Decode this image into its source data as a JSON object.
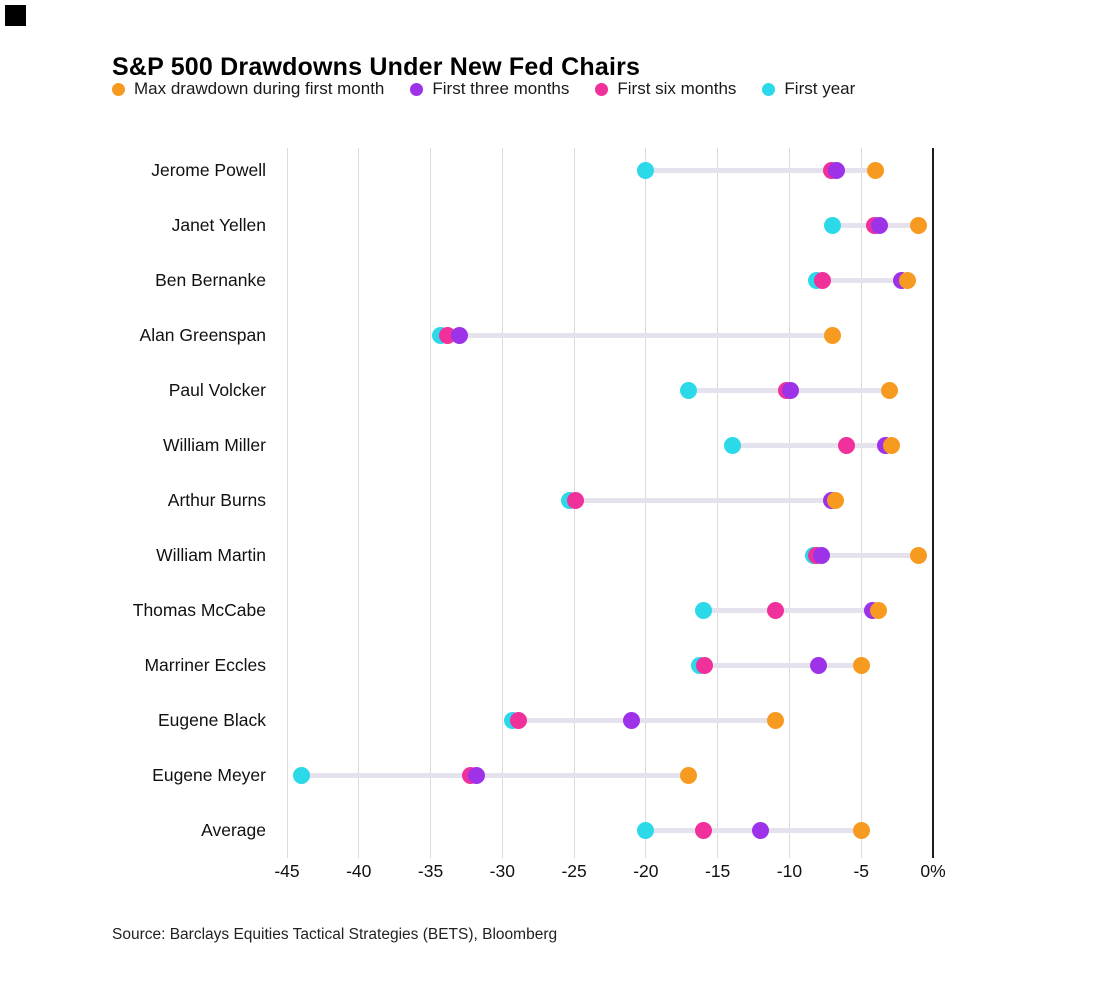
{
  "page": {
    "title": "S&P 500 Drawdowns Under New Fed Chairs",
    "source": "Source: Barclays Equities Tactical Strategies (BETS), Bloomberg"
  },
  "colors": {
    "first_month": "#F79A20",
    "three_months": "#9D32E8",
    "six_months": "#F0309B",
    "first_year": "#2BD9E8",
    "gridline": "#dbdbdb",
    "zero_line": "#1c1c1c",
    "connector": "#e5e2ee"
  },
  "chart_data": {
    "type": "scatter",
    "subtype": "dumbbell-dot-plot",
    "title": "S&P 500 Drawdowns Under New Fed Chairs",
    "unit": "%",
    "grid": "vertical",
    "legend_position": "top",
    "xlim": [
      -47.5,
      1.5
    ],
    "x_ticks": [
      -45,
      -40,
      -35,
      -30,
      -25,
      -20,
      -15,
      -10,
      -5,
      0
    ],
    "x_tick_labels": [
      "-45",
      "-40",
      "-35",
      "-30",
      "-25",
      "-20",
      "-15",
      "-10",
      "-5",
      "0%"
    ],
    "categories": [
      "Jerome Powell",
      "Janet Yellen",
      "Ben Bernanke",
      "Alan Greenspan",
      "Paul Volcker",
      "William Miller",
      "Arthur Burns",
      "William Martin",
      "Thomas McCabe",
      "Marriner Eccles",
      "Eugene Black",
      "Eugene Meyer",
      "Average"
    ],
    "series": [
      {
        "name": "Max drawdown during first month",
        "key": "first_month",
        "color": "#F79A20",
        "values": [
          -4,
          -1,
          -1.8,
          -7,
          -3,
          -2.9,
          -6.8,
          -1,
          -3.8,
          -5,
          -11,
          -17,
          -5
        ]
      },
      {
        "name": "First three months",
        "key": "three_months",
        "color": "#9D32E8",
        "values": [
          -6.7,
          -3.7,
          -2.2,
          -33,
          -9.9,
          -3.3,
          -7.1,
          -7.8,
          -4.2,
          -8,
          -21,
          -31.8,
          -12
        ]
      },
      {
        "name": "First six months",
        "key": "six_months",
        "color": "#F0309B",
        "values": [
          -7.1,
          -4.1,
          -7.7,
          -33.8,
          -10.2,
          -6,
          -24.9,
          -8.1,
          -11,
          -15.9,
          -28.9,
          -32.2,
          -16
        ]
      },
      {
        "name": "First year",
        "key": "first_year",
        "color": "#2BD9E8",
        "values": [
          -20,
          -7,
          -8.1,
          -34.3,
          -17,
          -14,
          -25.3,
          -8.3,
          -16,
          -16.3,
          -29.3,
          -44,
          -20
        ]
      }
    ]
  }
}
